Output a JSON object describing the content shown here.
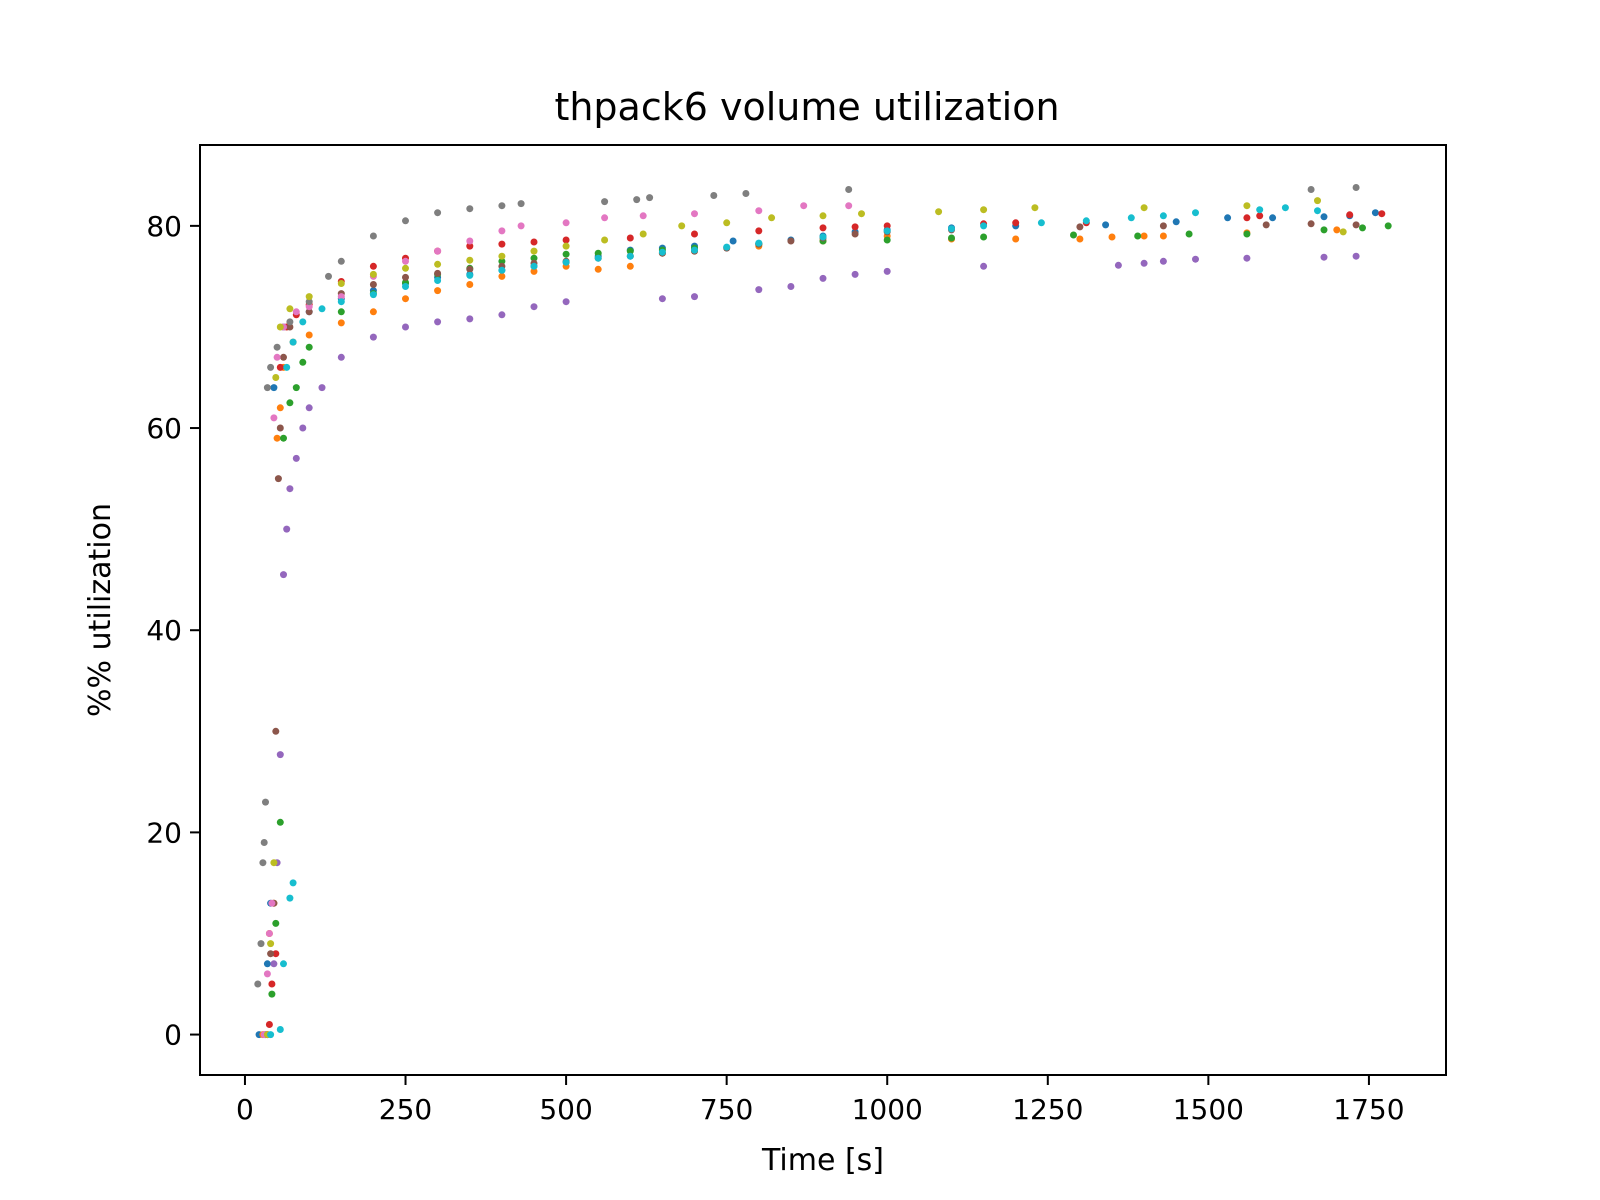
{
  "chart_data": {
    "type": "scatter",
    "title": "thpack6 volume utilization",
    "xlabel": "Time [s]",
    "ylabel": "%% utilization",
    "xlim": [
      -70,
      1870
    ],
    "ylim": [
      -4,
      88
    ],
    "xticks": [
      0,
      250,
      500,
      750,
      1000,
      1250,
      1500,
      1750
    ],
    "yticks": [
      0,
      20,
      40,
      60,
      80
    ],
    "grid": false,
    "legend": "none",
    "colors": [
      "#1f77b4",
      "#ff7f0e",
      "#2ca02c",
      "#d62728",
      "#9467bd",
      "#8c564b",
      "#e377c2",
      "#7f7f7f",
      "#bcbd22",
      "#17becf"
    ],
    "series": [
      {
        "points": [
          [
            22,
            0
          ],
          [
            35,
            7
          ],
          [
            40,
            13
          ],
          [
            45,
            64
          ],
          [
            60,
            70
          ],
          [
            100,
            71.5
          ],
          [
            150,
            72.8
          ],
          [
            200,
            73.6
          ],
          [
            250,
            74.3
          ],
          [
            300,
            74.9
          ],
          [
            350,
            75.2
          ],
          [
            400,
            75.6
          ],
          [
            450,
            76
          ],
          [
            500,
            76.4
          ],
          [
            550,
            77
          ],
          [
            600,
            77.6
          ],
          [
            650,
            77.8
          ],
          [
            700,
            78
          ],
          [
            760,
            78.5
          ],
          [
            800,
            78.2
          ],
          [
            850,
            78.6
          ],
          [
            900,
            79
          ],
          [
            950,
            79.4
          ],
          [
            1000,
            79.6
          ],
          [
            1100,
            79.8
          ],
          [
            1200,
            80
          ],
          [
            1340,
            80.1
          ],
          [
            1450,
            80.4
          ],
          [
            1530,
            80.8
          ],
          [
            1600,
            80.8
          ],
          [
            1680,
            80.9
          ],
          [
            1720,
            81
          ],
          [
            1760,
            81.3
          ]
        ]
      },
      {
        "points": [
          [
            28,
            0
          ],
          [
            38,
            10
          ],
          [
            45,
            13
          ],
          [
            50,
            59
          ],
          [
            55,
            62
          ],
          [
            60,
            66
          ],
          [
            75,
            68.5
          ],
          [
            100,
            69.2
          ],
          [
            150,
            70.4
          ],
          [
            200,
            71.5
          ],
          [
            250,
            72.8
          ],
          [
            300,
            73.6
          ],
          [
            350,
            74.2
          ],
          [
            400,
            75
          ],
          [
            450,
            75.5
          ],
          [
            500,
            76
          ],
          [
            550,
            75.7
          ],
          [
            600,
            76
          ],
          [
            650,
            77.3
          ],
          [
            700,
            77.5
          ],
          [
            800,
            78
          ],
          [
            900,
            78.5
          ],
          [
            1000,
            79
          ],
          [
            1100,
            78.7
          ],
          [
            1200,
            78.7
          ],
          [
            1300,
            78.7
          ],
          [
            1350,
            78.9
          ],
          [
            1400,
            79
          ],
          [
            1430,
            79
          ],
          [
            1560,
            79.3
          ],
          [
            1700,
            79.6
          ]
        ]
      },
      {
        "points": [
          [
            42,
            4
          ],
          [
            48,
            11
          ],
          [
            55,
            21
          ],
          [
            60,
            59
          ],
          [
            70,
            62.5
          ],
          [
            80,
            64
          ],
          [
            90,
            66.5
          ],
          [
            100,
            68
          ],
          [
            150,
            71.5
          ],
          [
            200,
            73.3
          ],
          [
            250,
            74.4
          ],
          [
            300,
            75.2
          ],
          [
            350,
            75.8
          ],
          [
            400,
            76.5
          ],
          [
            450,
            76.8
          ],
          [
            500,
            77.2
          ],
          [
            550,
            77.3
          ],
          [
            600,
            77.5
          ],
          [
            650,
            77.6
          ],
          [
            700,
            77.8
          ],
          [
            800,
            78.2
          ],
          [
            900,
            78.5
          ],
          [
            1000,
            78.6
          ],
          [
            1100,
            78.8
          ],
          [
            1150,
            78.9
          ],
          [
            1290,
            79.1
          ],
          [
            1390,
            79
          ],
          [
            1470,
            79.2
          ],
          [
            1560,
            79.2
          ],
          [
            1680,
            79.6
          ],
          [
            1740,
            79.8
          ],
          [
            1780,
            80
          ]
        ]
      },
      {
        "points": [
          [
            35,
            0
          ],
          [
            38,
            1
          ],
          [
            42,
            5
          ],
          [
            48,
            8
          ],
          [
            55,
            66
          ],
          [
            65,
            70
          ],
          [
            80,
            71.2
          ],
          [
            100,
            72.2
          ],
          [
            150,
            74.5
          ],
          [
            200,
            76
          ],
          [
            250,
            76.8
          ],
          [
            300,
            77.5
          ],
          [
            350,
            78
          ],
          [
            400,
            78.2
          ],
          [
            450,
            78.4
          ],
          [
            500,
            78.6
          ],
          [
            600,
            78.8
          ],
          [
            700,
            79.2
          ],
          [
            800,
            79.5
          ],
          [
            900,
            79.8
          ],
          [
            950,
            79.9
          ],
          [
            1000,
            80
          ],
          [
            1150,
            80.2
          ],
          [
            1200,
            80.3
          ],
          [
            1310,
            80.3
          ],
          [
            1560,
            80.8
          ],
          [
            1580,
            81
          ],
          [
            1720,
            81.1
          ],
          [
            1770,
            81.2
          ]
        ]
      },
      {
        "points": [
          [
            45,
            7
          ],
          [
            50,
            17
          ],
          [
            55,
            27.7
          ],
          [
            60,
            45.5
          ],
          [
            65,
            50
          ],
          [
            70,
            54
          ],
          [
            80,
            57
          ],
          [
            90,
            60
          ],
          [
            100,
            62
          ],
          [
            120,
            64
          ],
          [
            150,
            67
          ],
          [
            200,
            69
          ],
          [
            250,
            70
          ],
          [
            300,
            70.5
          ],
          [
            350,
            70.8
          ],
          [
            400,
            71.2
          ],
          [
            450,
            72
          ],
          [
            500,
            72.5
          ],
          [
            650,
            72.8
          ],
          [
            700,
            73
          ],
          [
            800,
            73.7
          ],
          [
            850,
            74
          ],
          [
            900,
            74.8
          ],
          [
            950,
            75.2
          ],
          [
            1000,
            75.5
          ],
          [
            1150,
            76
          ],
          [
            1360,
            76.1
          ],
          [
            1400,
            76.3
          ],
          [
            1430,
            76.5
          ],
          [
            1480,
            76.7
          ],
          [
            1560,
            76.8
          ],
          [
            1680,
            76.9
          ],
          [
            1730,
            77
          ]
        ]
      },
      {
        "points": [
          [
            32,
            0
          ],
          [
            40,
            8
          ],
          [
            45,
            13
          ],
          [
            48,
            30
          ],
          [
            52,
            55
          ],
          [
            55,
            60
          ],
          [
            60,
            67
          ],
          [
            70,
            70
          ],
          [
            100,
            71.5
          ],
          [
            150,
            73.3
          ],
          [
            200,
            74.2
          ],
          [
            250,
            74.9
          ],
          [
            300,
            75.3
          ],
          [
            350,
            75.7
          ],
          [
            400,
            76
          ],
          [
            450,
            76.3
          ],
          [
            500,
            76.5
          ],
          [
            550,
            76.8
          ],
          [
            600,
            77
          ],
          [
            650,
            77.3
          ],
          [
            700,
            77.5
          ],
          [
            750,
            77.8
          ],
          [
            800,
            78.2
          ],
          [
            850,
            78.5
          ],
          [
            900,
            78.8
          ],
          [
            950,
            79.2
          ],
          [
            1000,
            79.4
          ],
          [
            1100,
            79.6
          ],
          [
            1300,
            79.9
          ],
          [
            1430,
            80
          ],
          [
            1590,
            80.1
          ],
          [
            1660,
            80.2
          ],
          [
            1730,
            80.1
          ]
        ]
      },
      {
        "points": [
          [
            30,
            0
          ],
          [
            35,
            6
          ],
          [
            38,
            10
          ],
          [
            42,
            13
          ],
          [
            45,
            61
          ],
          [
            50,
            67
          ],
          [
            60,
            70
          ],
          [
            80,
            71.5
          ],
          [
            100,
            72
          ],
          [
            150,
            73
          ],
          [
            200,
            75
          ],
          [
            250,
            76.5
          ],
          [
            300,
            77.5
          ],
          [
            350,
            78.5
          ],
          [
            400,
            79.5
          ],
          [
            430,
            80
          ],
          [
            500,
            80.3
          ],
          [
            560,
            80.8
          ],
          [
            620,
            81
          ],
          [
            700,
            81.2
          ],
          [
            800,
            81.5
          ],
          [
            870,
            82
          ],
          [
            940,
            82
          ]
        ]
      },
      {
        "points": [
          [
            20,
            5
          ],
          [
            25,
            9
          ],
          [
            28,
            17
          ],
          [
            30,
            19
          ],
          [
            32,
            23
          ],
          [
            35,
            64
          ],
          [
            40,
            66
          ],
          [
            50,
            68
          ],
          [
            70,
            70.5
          ],
          [
            100,
            72.5
          ],
          [
            130,
            75
          ],
          [
            150,
            76.5
          ],
          [
            200,
            79
          ],
          [
            250,
            80.5
          ],
          [
            300,
            81.3
          ],
          [
            350,
            81.7
          ],
          [
            400,
            82
          ],
          [
            430,
            82.2
          ],
          [
            560,
            82.4
          ],
          [
            610,
            82.6
          ],
          [
            630,
            82.8
          ],
          [
            730,
            83
          ],
          [
            780,
            83.2
          ],
          [
            940,
            83.6
          ],
          [
            1660,
            83.6
          ],
          [
            1730,
            83.8
          ]
        ]
      },
      {
        "points": [
          [
            35,
            0
          ],
          [
            40,
            9
          ],
          [
            45,
            17
          ],
          [
            48,
            65
          ],
          [
            55,
            70
          ],
          [
            70,
            71.8
          ],
          [
            100,
            73
          ],
          [
            150,
            74.3
          ],
          [
            200,
            75.2
          ],
          [
            250,
            75.8
          ],
          [
            300,
            76.2
          ],
          [
            350,
            76.6
          ],
          [
            400,
            77
          ],
          [
            450,
            77.5
          ],
          [
            500,
            78
          ],
          [
            560,
            78.6
          ],
          [
            620,
            79.2
          ],
          [
            680,
            80
          ],
          [
            750,
            80.3
          ],
          [
            820,
            80.8
          ],
          [
            900,
            81
          ],
          [
            960,
            81.2
          ],
          [
            1080,
            81.4
          ],
          [
            1150,
            81.6
          ],
          [
            1230,
            81.8
          ],
          [
            1400,
            81.8
          ],
          [
            1560,
            82
          ],
          [
            1670,
            82.5
          ],
          [
            1710,
            79.4
          ]
        ]
      },
      {
        "points": [
          [
            40,
            0
          ],
          [
            55,
            0.5
          ],
          [
            60,
            7
          ],
          [
            70,
            13.5
          ],
          [
            75,
            15
          ],
          [
            65,
            66
          ],
          [
            75,
            68.5
          ],
          [
            90,
            70.5
          ],
          [
            120,
            71.8
          ],
          [
            150,
            72.5
          ],
          [
            200,
            73.2
          ],
          [
            250,
            74
          ],
          [
            300,
            74.6
          ],
          [
            350,
            75.1
          ],
          [
            400,
            75.6
          ],
          [
            450,
            76
          ],
          [
            500,
            76.4
          ],
          [
            550,
            76.8
          ],
          [
            600,
            77
          ],
          [
            650,
            77.4
          ],
          [
            700,
            77.6
          ],
          [
            750,
            77.9
          ],
          [
            800,
            78.3
          ],
          [
            900,
            78.9
          ],
          [
            1000,
            79.5
          ],
          [
            1100,
            79.7
          ],
          [
            1150,
            80
          ],
          [
            1240,
            80.3
          ],
          [
            1310,
            80.5
          ],
          [
            1380,
            80.8
          ],
          [
            1430,
            81
          ],
          [
            1480,
            81.3
          ],
          [
            1580,
            81.6
          ],
          [
            1620,
            81.8
          ],
          [
            1670,
            81.5
          ]
        ]
      }
    ]
  }
}
